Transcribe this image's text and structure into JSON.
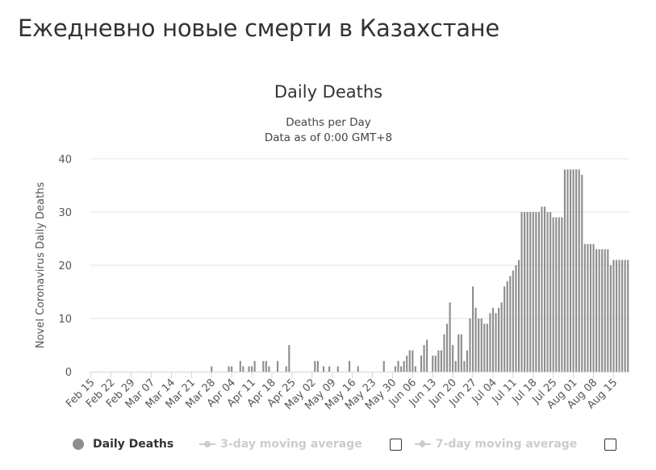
{
  "page": {
    "heading": "Ежедневно новые смерти в Казахстане"
  },
  "legend": {
    "items": [
      {
        "label": "Daily Deaths",
        "color": "#8e8e8e",
        "active": true
      },
      {
        "label": "3-day moving average",
        "color": "#cccccc",
        "active": false
      },
      {
        "label": "7-day moving average",
        "color": "#cccccc",
        "active": false
      }
    ]
  },
  "chart_data": {
    "type": "bar",
    "title": "Daily Deaths",
    "subtitle": [
      "Deaths per Day",
      "Data as of 0:00 GMT+8"
    ],
    "ylabel": "Novel Coronavirus Daily Deaths",
    "xlabel": "",
    "ylim": [
      0,
      40
    ],
    "yticks": [
      0,
      10,
      20,
      30,
      40
    ],
    "grid": true,
    "bar_color": "#8e8e8e",
    "legend_position": "bottom",
    "start_date": "Feb 15",
    "xtick_labels": [
      "Feb 15",
      "Feb 22",
      "Feb 29",
      "Mar 07",
      "Mar 14",
      "Mar 21",
      "Mar 28",
      "Apr 04",
      "Apr 11",
      "Apr 18",
      "Apr 25",
      "May 02",
      "May 09",
      "May 16",
      "May 23",
      "May 30",
      "Jun 06",
      "Jun 13",
      "Jun 20",
      "Jun 27",
      "Jul 04",
      "Jul 11",
      "Jul 18",
      "Jul 25",
      "Aug 01",
      "Aug 08",
      "Aug 15"
    ],
    "series": [
      {
        "name": "Daily Deaths",
        "values": [
          0,
          0,
          0,
          0,
          0,
          0,
          0,
          0,
          0,
          0,
          0,
          0,
          0,
          0,
          0,
          0,
          0,
          0,
          0,
          0,
          0,
          0,
          0,
          0,
          0,
          0,
          0,
          0,
          0,
          0,
          0,
          0,
          0,
          0,
          0,
          0,
          0,
          0,
          0,
          0,
          0,
          0,
          1,
          0,
          0,
          0,
          0,
          0,
          1,
          1,
          0,
          0,
          2,
          1,
          0,
          1,
          1,
          2,
          0,
          0,
          2,
          2,
          1,
          0,
          0,
          2,
          0,
          0,
          1,
          5,
          0,
          0,
          0,
          0,
          0,
          0,
          0,
          0,
          2,
          2,
          0,
          1,
          0,
          1,
          0,
          0,
          1,
          0,
          0,
          0,
          2,
          0,
          0,
          1,
          0,
          0,
          0,
          0,
          0,
          0,
          0,
          0,
          2,
          0,
          0,
          0,
          1,
          2,
          1,
          2,
          3,
          4,
          4,
          1,
          0,
          3,
          5,
          6,
          0,
          3,
          3,
          4,
          4,
          7,
          9,
          13,
          5,
          2,
          7,
          7,
          2,
          4,
          10,
          16,
          12,
          10,
          10,
          9,
          9,
          11,
          12,
          11,
          12,
          13,
          16,
          17,
          18,
          19,
          20,
          21,
          30,
          30,
          30,
          30,
          30,
          30,
          30,
          31,
          31,
          30,
          30,
          29,
          29,
          29,
          29,
          38,
          38,
          38,
          38,
          38,
          38,
          37,
          24,
          24,
          24,
          24,
          23,
          23,
          23,
          23,
          23,
          20,
          21,
          21,
          21,
          21,
          21,
          21
        ]
      }
    ]
  }
}
